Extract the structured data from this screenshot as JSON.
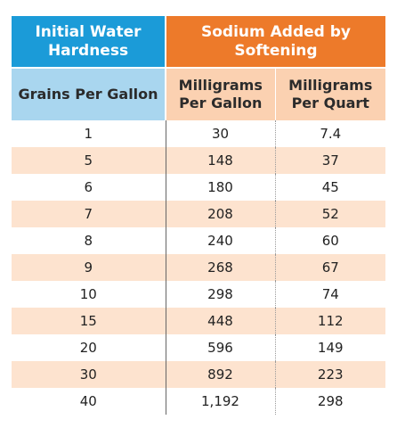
{
  "header": {
    "left_title": "Initial Water Hardness",
    "right_title": "Sodium Added by Softening"
  },
  "columns": [
    "Grains Per Gallon",
    "Milligrams Per Gallon",
    "Milligrams Per Quart"
  ],
  "rows": [
    [
      "1",
      "30",
      "7.4"
    ],
    [
      "5",
      "148",
      "37"
    ],
    [
      "6",
      "180",
      "45"
    ],
    [
      "7",
      "208",
      "52"
    ],
    [
      "8",
      "240",
      "60"
    ],
    [
      "9",
      "268",
      "67"
    ],
    [
      "10",
      "298",
      "74"
    ],
    [
      "15",
      "448",
      "112"
    ],
    [
      "20",
      "596",
      "149"
    ],
    [
      "30",
      "892",
      "223"
    ],
    [
      "40",
      "1,192",
      "298"
    ]
  ],
  "colors": {
    "blue_header": "#1b9bd8",
    "orange_header": "#ed7a2a",
    "light_blue": "#a9d6ef",
    "light_orange": "#fbd1b1",
    "row_stripe": "#fde3cf"
  }
}
